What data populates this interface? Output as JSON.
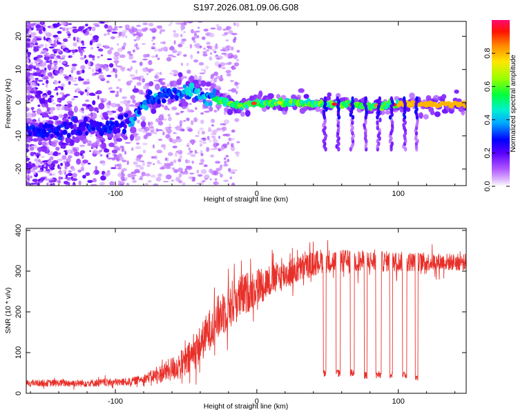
{
  "title": "S197.2026.081.09.06.G08",
  "chart_data": [
    {
      "type": "heatmap",
      "name": "spectrogram",
      "xlabel": "Height of straight line (km)",
      "ylabel": "Frequency (Hz)",
      "xlim": [
        -163,
        148
      ],
      "ylim": [
        -25,
        24.5
      ],
      "xticks": [
        -100,
        0,
        100
      ],
      "yticks": [
        -20,
        -10,
        0,
        10,
        20
      ],
      "colorbar": {
        "label": "Normalized spectral amplitude",
        "range": [
          0,
          1
        ],
        "ticks": [
          0.0,
          0.2,
          0.4,
          0.6,
          0.8
        ],
        "colors": [
          "#ffffff",
          "#cc66ff",
          "#7a00ff",
          "#0000ff",
          "#00c8ff",
          "#00ff64",
          "#aaff00",
          "#ffee00",
          "#ff8800",
          "#ff0000",
          "#ff1070"
        ]
      },
      "ridge": [
        {
          "x": -160,
          "f": -8.5
        },
        {
          "x": -140,
          "f": -8
        },
        {
          "x": -120,
          "f": -7.5
        },
        {
          "x": -100,
          "f": -7
        },
        {
          "x": -90,
          "f": -6
        },
        {
          "x": -82,
          "f": -2
        },
        {
          "x": -75,
          "f": 1.5
        },
        {
          "x": -60,
          "f": 2.5
        },
        {
          "x": -45,
          "f": 3.5
        },
        {
          "x": -35,
          "f": 1.5
        },
        {
          "x": -20,
          "f": 0
        },
        {
          "x": -10,
          "f": -1
        },
        {
          "x": 0,
          "f": 0
        },
        {
          "x": 20,
          "f": 0
        },
        {
          "x": 40,
          "f": -0.3
        },
        {
          "x": 60,
          "f": -0.5
        },
        {
          "x": 80,
          "f": -1
        },
        {
          "x": 100,
          "f": -0.5
        },
        {
          "x": 148,
          "f": -0.5
        }
      ]
    },
    {
      "type": "line",
      "name": "snr",
      "xlabel": "Height of straight line (km)",
      "ylabel": "SNR (10 * v/v)",
      "xlim": [
        -163,
        148
      ],
      "ylim": [
        0,
        405
      ],
      "xticks": [
        -100,
        0,
        100
      ],
      "yticks": [
        0,
        100,
        200,
        300,
        400
      ],
      "series": [
        {
          "name": "SNR",
          "color": "#e8302a",
          "trend": [
            {
              "x": -163,
              "y": 25
            },
            {
              "x": -120,
              "y": 25
            },
            {
              "x": -90,
              "y": 28
            },
            {
              "x": -70,
              "y": 45
            },
            {
              "x": -50,
              "y": 75
            },
            {
              "x": -40,
              "y": 120
            },
            {
              "x": -30,
              "y": 175
            },
            {
              "x": -20,
              "y": 215
            },
            {
              "x": -10,
              "y": 240
            },
            {
              "x": 0,
              "y": 262
            },
            {
              "x": 10,
              "y": 278
            },
            {
              "x": 20,
              "y": 292
            },
            {
              "x": 30,
              "y": 305
            },
            {
              "x": 45,
              "y": 325
            },
            {
              "x": 148,
              "y": 322
            }
          ],
          "noise": [
            {
              "x": -163,
              "a": 16
            },
            {
              "x": -80,
              "a": 20
            },
            {
              "x": -50,
              "a": 80
            },
            {
              "x": -20,
              "a": 120
            },
            {
              "x": 10,
              "a": 80
            },
            {
              "x": 40,
              "a": 60
            },
            {
              "x": 148,
              "a": 40
            }
          ],
          "dropouts": [
            {
              "x0": 47,
              "x1": 49,
              "y": 50
            },
            {
              "x0": 56,
              "x1": 59,
              "y": 50
            },
            {
              "x0": 66,
              "x1": 69,
              "y": 50
            },
            {
              "x0": 76,
              "x1": 78,
              "y": 45
            },
            {
              "x0": 84,
              "x1": 88,
              "y": 45
            },
            {
              "x0": 94,
              "x1": 96,
              "y": 45
            },
            {
              "x0": 103,
              "x1": 106,
              "y": 45
            },
            {
              "x0": 112,
              "x1": 114,
              "y": 40
            }
          ]
        }
      ]
    }
  ]
}
